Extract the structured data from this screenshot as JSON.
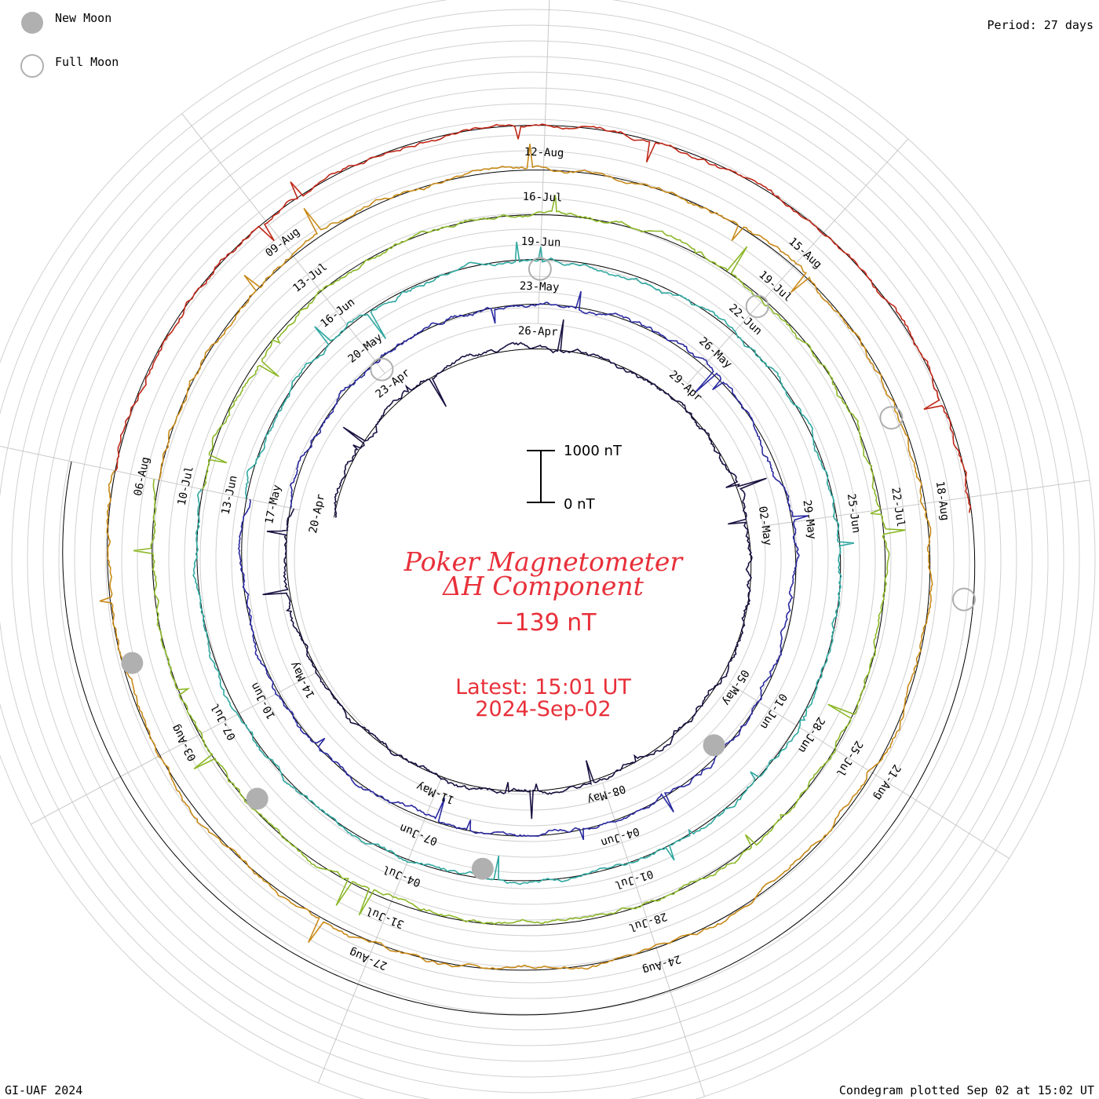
{
  "legend": {
    "new_moon_label": "New Moon",
    "full_moon_label": "Full Moon",
    "new_moon_color": "#b0b0b0",
    "full_moon_color": "#b0b0b0"
  },
  "header": {
    "period": "Period: 27 days"
  },
  "footer": {
    "credit": "GI-UAF 2024",
    "plotted": "Condegram plotted Sep 02 at 15:02 UT"
  },
  "center": {
    "title_line1": "Poker Magnetometer",
    "title_line2": "ΔH Component",
    "current_value": "−139 nT",
    "latest_time": "Latest: 15:01 UT",
    "latest_date": "2024-Sep-02",
    "scale_top": "1000 nT",
    "scale_bottom": "0 nT"
  },
  "chart_data": {
    "type": "line",
    "title": "Poker Magnetometer ΔH Component",
    "period_days": 27,
    "scale_nT": 1000,
    "start_date": "20-Apr",
    "latest": "2024-Sep-02 15:01 UT",
    "current_value_nT": -139,
    "series": [
      {
        "name": "",
        "color": "#1a1040",
        "ticks": [
          "20-Apr",
          "23-Apr",
          "26-Apr",
          "29-Apr",
          "02-May",
          "05-May",
          "08-May",
          "11-May",
          "14-May"
        ]
      },
      {
        "name": "",
        "color": "#2a2aa0",
        "ticks": [
          "17-May",
          "20-May",
          "23-May",
          "26-May",
          "29-May",
          "01-Jun",
          "04-Jun",
          "07-Jun",
          "10-Jun"
        ]
      },
      {
        "name": "",
        "color": "#2fa8a0",
        "ticks": [
          "13-Jun",
          "16-Jun",
          "19-Jun",
          "22-Jun",
          "25-Jun",
          "28-Jun",
          "01-Jul",
          "04-Jul",
          "07-Jul"
        ]
      },
      {
        "name": "",
        "color": "#8cb828",
        "ticks": [
          "10-Jul",
          "13-Jul",
          "16-Jul",
          "19-Jul",
          "22-Jul",
          "25-Jul",
          "28-Jul",
          "31-Jul",
          "03-Aug"
        ]
      },
      {
        "name": "",
        "color": "#c88a18",
        "ticks": [
          "06-Aug",
          "09-Aug",
          "12-Aug",
          "15-Aug",
          "18-Aug",
          "21-Aug",
          "24-Aug",
          "27-Aug"
        ]
      },
      {
        "name": "",
        "color": "#c02818",
        "ticks": []
      }
    ],
    "moons": [
      {
        "type": "new",
        "date": "06-May"
      },
      {
        "type": "full",
        "date": "23-May"
      },
      {
        "type": "new",
        "date": "06-Jun"
      },
      {
        "type": "full",
        "date": "22-Jun"
      },
      {
        "type": "new",
        "date": "06-Jul"
      },
      {
        "type": "full",
        "date": "21-Jul"
      },
      {
        "type": "new",
        "date": "04-Aug"
      },
      {
        "type": "full",
        "date": "19-Aug"
      },
      {
        "type": "full",
        "date": "23-Apr"
      }
    ],
    "grid": true
  }
}
